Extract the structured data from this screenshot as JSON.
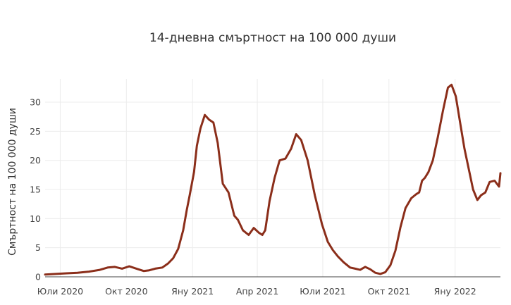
{
  "chart_data": {
    "type": "line",
    "title": "14-дневна смъртност на 100 000 души",
    "xlabel": "",
    "ylabel": "Смъртност на 100 000 души",
    "x_range": [
      "2020-06-10",
      "2022-03-05"
    ],
    "ylim": [
      0,
      34
    ],
    "x_ticks": [
      {
        "date": "2020-07-01",
        "label": "Юли 2020"
      },
      {
        "date": "2020-10-01",
        "label": "Окт 2020"
      },
      {
        "date": "2021-01-01",
        "label": "Яну 2021"
      },
      {
        "date": "2021-04-01",
        "label": "Апр 2021"
      },
      {
        "date": "2021-07-01",
        "label": "Юли 2021"
      },
      {
        "date": "2021-10-01",
        "label": "Окт 2021"
      },
      {
        "date": "2022-01-01",
        "label": "Яну 2022"
      }
    ],
    "y_ticks": [
      0,
      5,
      10,
      15,
      20,
      25,
      30
    ],
    "grid": true,
    "line_color": "#8b2e1a",
    "series": [
      {
        "x": [
          "2020-06-10",
          "2020-06-25",
          "2020-07-10",
          "2020-07-25",
          "2020-08-10",
          "2020-08-25",
          "2020-09-05",
          "2020-09-15",
          "2020-09-25",
          "2020-10-05",
          "2020-10-15",
          "2020-10-25",
          "2020-11-01",
          "2020-11-10",
          "2020-11-20",
          "2020-11-28",
          "2020-12-05",
          "2020-12-12",
          "2020-12-19",
          "2020-12-24",
          "2020-12-28",
          "2021-01-03",
          "2021-01-07",
          "2021-01-12",
          "2021-01-18",
          "2021-01-24",
          "2021-01-30",
          "2021-02-05",
          "2021-02-12",
          "2021-02-20",
          "2021-02-28",
          "2021-03-05",
          "2021-03-12",
          "2021-03-20",
          "2021-03-27",
          "2021-04-03",
          "2021-04-08",
          "2021-04-12",
          "2021-04-18",
          "2021-04-25",
          "2021-05-02",
          "2021-05-10",
          "2021-05-18",
          "2021-05-25",
          "2021-06-01",
          "2021-06-10",
          "2021-06-20",
          "2021-06-30",
          "2021-07-08",
          "2021-07-15",
          "2021-07-22",
          "2021-07-30",
          "2021-08-08",
          "2021-08-15",
          "2021-08-22",
          "2021-08-29",
          "2021-09-05",
          "2021-09-12",
          "2021-09-19",
          "2021-09-26",
          "2021-10-03",
          "2021-10-10",
          "2021-10-17",
          "2021-10-24",
          "2021-11-01",
          "2021-11-08",
          "2021-11-12",
          "2021-11-16",
          "2021-11-20",
          "2021-11-25",
          "2021-12-01",
          "2021-12-08",
          "2021-12-15",
          "2021-12-22",
          "2021-12-27",
          "2022-01-02",
          "2022-01-08",
          "2022-01-14",
          "2022-01-20",
          "2022-01-26",
          "2022-02-01",
          "2022-02-06",
          "2022-02-12",
          "2022-02-18",
          "2022-02-25",
          "2022-03-03",
          "2022-03-05"
        ],
        "y": [
          0.4,
          0.5,
          0.6,
          0.7,
          0.9,
          1.2,
          1.6,
          1.7,
          1.4,
          1.8,
          1.4,
          1.0,
          1.1,
          1.4,
          1.6,
          2.3,
          3.2,
          4.8,
          8.0,
          11.5,
          14.0,
          18.0,
          22.5,
          25.5,
          27.8,
          27.0,
          26.5,
          23.0,
          16.0,
          14.5,
          10.5,
          9.8,
          8.0,
          7.2,
          8.4,
          7.6,
          7.2,
          8.0,
          13.0,
          17.0,
          20.0,
          20.3,
          22.0,
          24.5,
          23.5,
          20.0,
          14.0,
          9.0,
          6.0,
          4.6,
          3.5,
          2.5,
          1.6,
          1.4,
          1.2,
          1.7,
          1.3,
          0.7,
          0.5,
          0.8,
          2.0,
          4.5,
          8.5,
          11.8,
          13.5,
          14.2,
          14.5,
          16.5,
          17.0,
          18.0,
          20.0,
          24.0,
          28.5,
          32.5,
          33.0,
          31.0,
          26.5,
          22.0,
          18.5,
          15.0,
          13.2,
          14.0,
          14.5,
          16.3,
          16.5,
          15.5,
          17.8
        ]
      }
    ]
  }
}
